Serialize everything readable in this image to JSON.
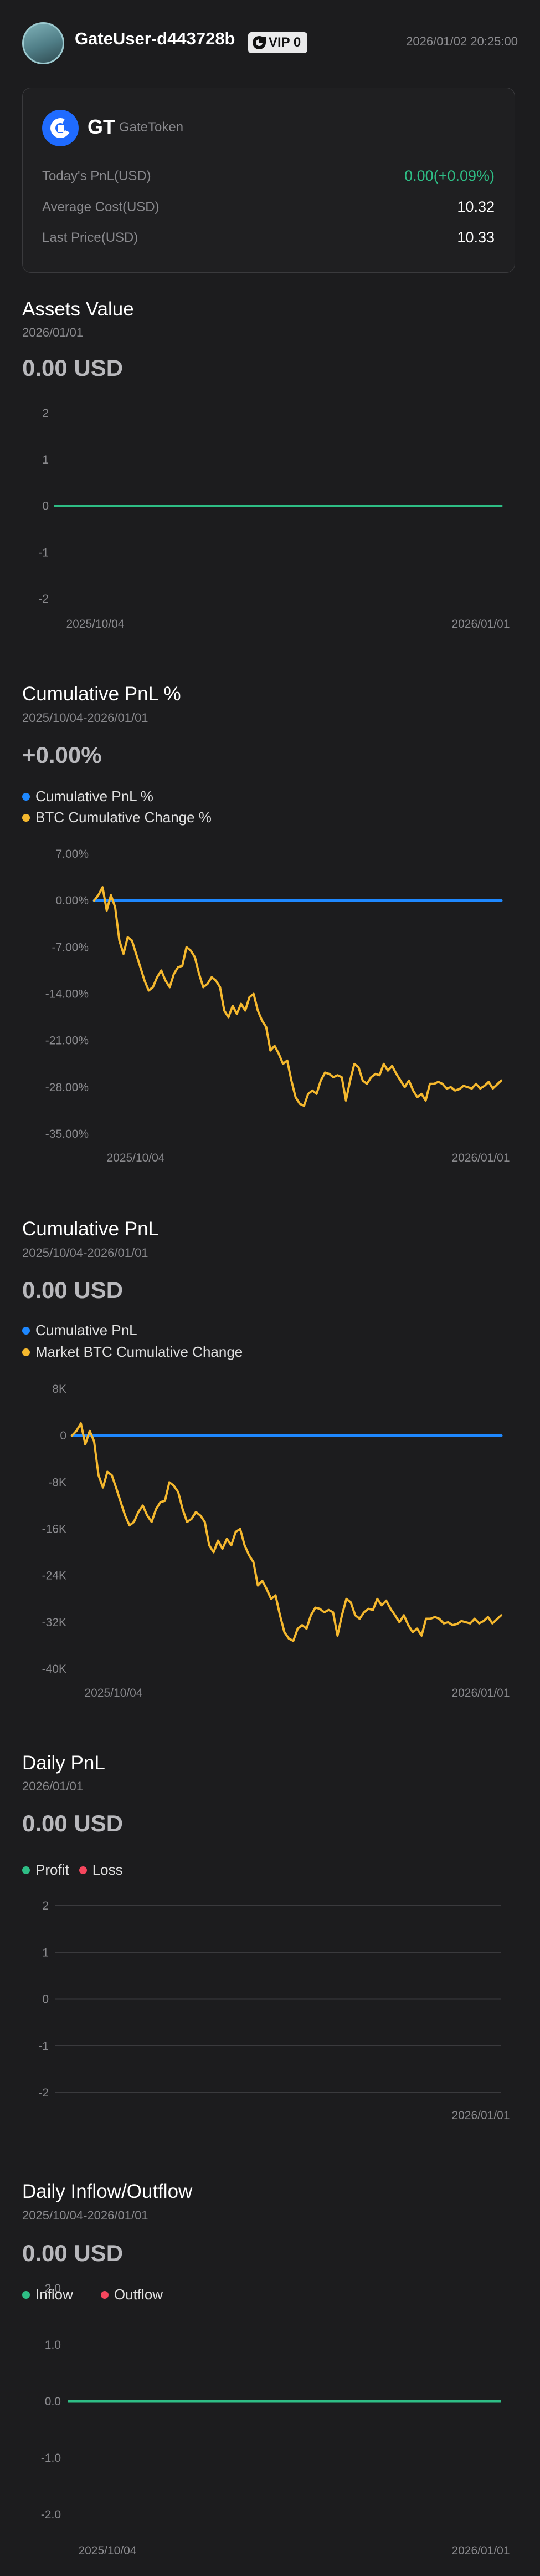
{
  "header": {
    "username": "GateUser-d443728b",
    "vip_label": "VIP 0",
    "timestamp": "2026/01/02 20:25:00"
  },
  "token": {
    "symbol": "GT",
    "name": "GateToken",
    "rows": [
      {
        "label": "Today's PnL(USD)",
        "value": "0.00(+0.09%)"
      },
      {
        "label": "Average Cost(USD)",
        "value": "10.32"
      },
      {
        "label": "Last Price(USD)",
        "value": "10.33"
      }
    ]
  },
  "colors": {
    "background": "#1c1c1e",
    "positive": "#2ebd85",
    "negative": "#f6465d",
    "blue": "#1e88ff",
    "btc": "#f5b82e",
    "muted": "#8a8a8e"
  },
  "sections": {
    "assets": {
      "title": "Assets Value",
      "date": "2026/01/01",
      "value": "0.00 USD"
    },
    "cum_pnl_pct": {
      "title": "Cumulative PnL %",
      "date": "2025/10/04-2026/01/01",
      "value": "+0.00%",
      "legend": [
        "Cumulative PnL %",
        "BTC Cumulative Change %"
      ]
    },
    "cum_pnl": {
      "title": "Cumulative PnL",
      "date": "2025/10/04-2026/01/01",
      "value": "0.00 USD",
      "legend": [
        "Cumulative PnL",
        "Market BTC Cumulative Change"
      ]
    },
    "daily_pnl": {
      "title": "Daily PnL",
      "date": "2026/01/01",
      "value": "0.00 USD",
      "legend": [
        "Profit",
        "Loss"
      ]
    },
    "inflow": {
      "title": "Daily Inflow/Outflow",
      "date": "2025/10/04-2026/01/01",
      "value": "0.00 USD",
      "legend": [
        "Inflow",
        "Outflow"
      ]
    }
  },
  "chart_data": [
    {
      "id": "assets",
      "type": "line",
      "y_ticks": [
        "2",
        "1",
        "0",
        "-1",
        "-2"
      ],
      "ylim": [
        -2,
        2
      ],
      "x_ticks": [
        "2025/10/04",
        "2026/01/01"
      ],
      "series": [
        {
          "values": [
            0,
            0
          ]
        }
      ]
    },
    {
      "id": "cum_pnl_pct",
      "type": "line",
      "y_ticks": [
        "7.00%",
        "0.00%",
        "-7.00%",
        "-14.00%",
        "-21.00%",
        "-28.00%",
        "-35.00%"
      ],
      "ylim": [
        -35,
        7
      ],
      "x_ticks": [
        "2025/10/04",
        "2026/01/01"
      ],
      "series": [
        {
          "name": "Cumulative PnL %",
          "values": [
            0,
            0
          ]
        },
        {
          "name": "BTC Cumulative Change %",
          "values": [
            0,
            0.8,
            2,
            -1.5,
            0.8,
            -1,
            -6,
            -8,
            -5.5,
            -6,
            -8,
            -10,
            -12,
            -13.5,
            -13,
            -11.5,
            -10.5,
            -12,
            -13,
            -11,
            -10,
            -9.8,
            -7,
            -7.5,
            -8.5,
            -11,
            -13,
            -12.5,
            -11.5,
            -12,
            -13,
            -16.5,
            -17.5,
            -15.8,
            -17,
            -15.5,
            -16.5,
            -14.5,
            -14,
            -16.5,
            -18,
            -19,
            -22.5,
            -21.8,
            -23,
            -24.5,
            -24,
            -27,
            -29.5,
            -30.5,
            -30.8,
            -29,
            -28.5,
            -29,
            -27,
            -25.8,
            -26,
            -26.5,
            -26.2,
            -26.5,
            -30,
            -27,
            -24.5,
            -25,
            -27,
            -27.5,
            -26.5,
            -26,
            -26.2,
            -24.5,
            -25.5,
            -24.8,
            -26,
            -27,
            -28,
            -27,
            -28.5,
            -29.5,
            -29,
            -30,
            -27.5,
            -27.5,
            -27.2,
            -27.5,
            -28.2,
            -28,
            -28.5,
            -28.3,
            -27.8,
            -28,
            -28.2,
            -27.5,
            -28.2,
            -27.8,
            -27.2,
            -28.2,
            -27.6,
            -27
          ]
        }
      ]
    },
    {
      "id": "cum_pnl",
      "type": "line",
      "y_ticks": [
        "8K",
        "0",
        "-8K",
        "-16K",
        "-24K",
        "-32K",
        "-40K"
      ],
      "ylim": [
        -40000,
        8000
      ],
      "x_ticks": [
        "2025/10/04",
        "2026/01/01"
      ],
      "series": [
        {
          "name": "Cumulative PnL",
          "values": [
            0,
            0
          ]
        },
        {
          "name": "Market BTC Cumulative Change",
          "values": [
            0,
            800,
            2100,
            -1500,
            800,
            -1000,
            -6800,
            -8900,
            -6200,
            -6800,
            -9000,
            -11400,
            -13700,
            -15400,
            -14800,
            -13100,
            -12000,
            -13700,
            -14800,
            -12600,
            -11400,
            -11200,
            -8000,
            -8600,
            -9700,
            -12600,
            -14800,
            -14300,
            -13100,
            -13700,
            -14800,
            -18800,
            -20000,
            -18000,
            -19400,
            -17700,
            -18800,
            -16500,
            -16000,
            -18800,
            -20500,
            -21700,
            -25700,
            -24900,
            -26300,
            -28000,
            -27400,
            -30800,
            -33700,
            -34800,
            -35200,
            -33100,
            -32500,
            -33100,
            -30800,
            -29500,
            -29700,
            -30300,
            -29900,
            -30300,
            -34300,
            -30800,
            -28000,
            -28600,
            -30800,
            -31400,
            -30300,
            -29700,
            -29900,
            -28000,
            -29100,
            -28300,
            -29700,
            -30800,
            -32000,
            -30800,
            -32500,
            -33700,
            -33100,
            -34300,
            -31400,
            -31400,
            -31100,
            -31400,
            -32200,
            -32000,
            -32500,
            -32300,
            -31800,
            -32000,
            -32200,
            -31400,
            -32200,
            -31800,
            -31100,
            -32200,
            -31500,
            -30800
          ]
        }
      ]
    },
    {
      "id": "daily_pnl",
      "type": "bar",
      "y_ticks": [
        "2",
        "1",
        "0",
        "-1",
        "-2"
      ],
      "ylim": [
        -2,
        2
      ],
      "x_ticks": [
        "2026/01/01"
      ],
      "series": [
        {
          "name": "Profit",
          "values": []
        },
        {
          "name": "Loss",
          "values": []
        }
      ]
    },
    {
      "id": "inflow",
      "type": "bar",
      "y_ticks": [
        "2.0",
        "1.0",
        "0.0",
        "-1.0",
        "-2.0"
      ],
      "ylim": [
        -2,
        2
      ],
      "x_ticks": [
        "2025/10/04",
        "2026/01/01"
      ],
      "series": [
        {
          "name": "Inflow",
          "values": [
            0,
            0
          ]
        },
        {
          "name": "Outflow",
          "values": []
        }
      ]
    }
  ]
}
